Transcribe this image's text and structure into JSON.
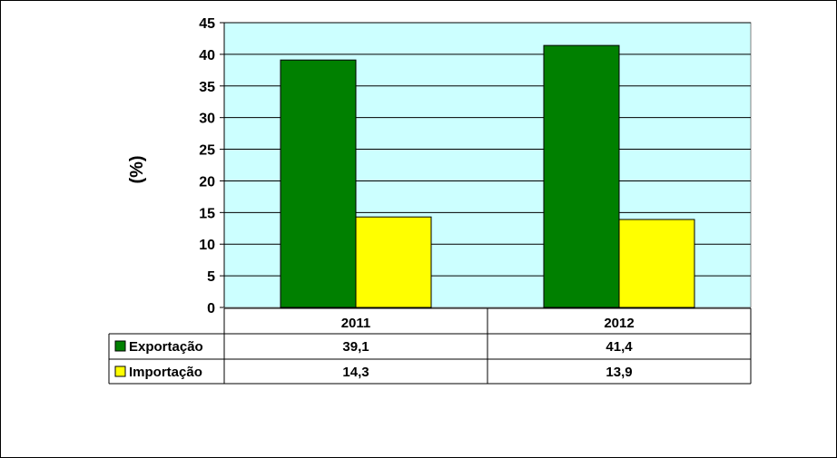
{
  "chart_data": {
    "type": "bar",
    "categories": [
      "2011",
      "2012"
    ],
    "ylabel": "(%)",
    "ylim": [
      0,
      45
    ],
    "yticks": [
      0,
      5,
      10,
      15,
      20,
      25,
      30,
      35,
      40,
      45
    ],
    "grid": true,
    "legend": "data-table",
    "series": [
      {
        "name": "Exportação",
        "values": [
          39.1,
          41.4
        ],
        "labels": [
          "39,1",
          "41,4"
        ],
        "color": "#008000"
      },
      {
        "name": "Importação",
        "values": [
          14.3,
          13.9
        ],
        "labels": [
          "14,3",
          "13,9"
        ],
        "color": "#FFFF00"
      }
    ],
    "plot_background": "#CCFFFF"
  }
}
